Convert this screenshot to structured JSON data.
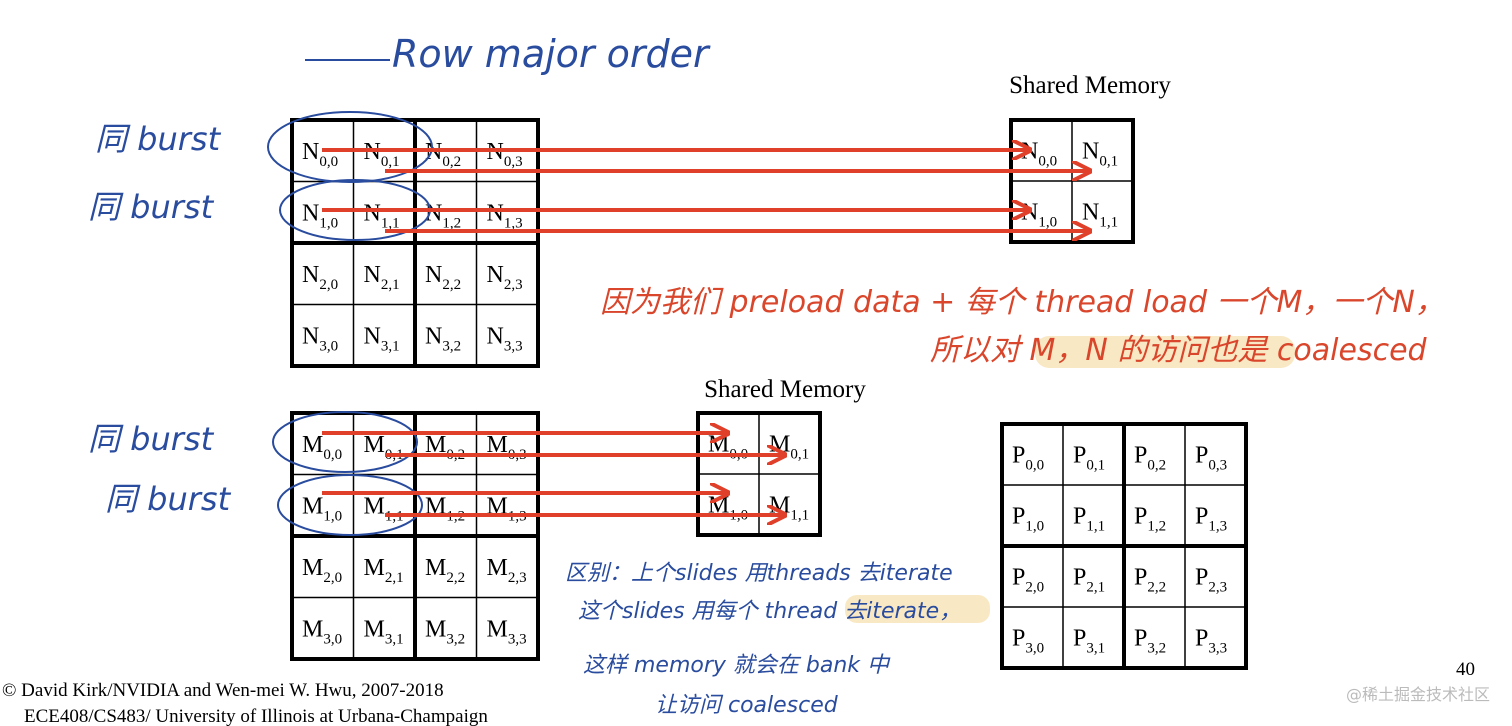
{
  "annotations": {
    "row_major": "Row major order",
    "burst_labels": [
      "同 burst",
      "同 burst",
      "同 burst",
      "同 burst"
    ],
    "note_top": [
      "因为我们 preload data + 每个 thread load 一个M，一个N，",
      "所以对 M，N 的访问也是 coalesced"
    ],
    "note_bottom": [
      "区别：上个slides 用threads 去iterate",
      "这个slides 用每个 thread 去iterate，",
      "这样 memory 就会在 bank 中",
      "让访问 coalesced"
    ]
  },
  "matrix_n": {
    "cells": [
      [
        {
          "letter": "N",
          "sub": "0,0"
        },
        {
          "letter": "N",
          "sub": "0,1"
        },
        {
          "letter": "N",
          "sub": "0,2"
        },
        {
          "letter": "N",
          "sub": "0,3"
        }
      ],
      [
        {
          "letter": "N",
          "sub": "1,0"
        },
        {
          "letter": "N",
          "sub": "1,1"
        },
        {
          "letter": "N",
          "sub": "1,2"
        },
        {
          "letter": "N",
          "sub": "1,3"
        }
      ],
      [
        {
          "letter": "N",
          "sub": "2,0"
        },
        {
          "letter": "N",
          "sub": "2,1"
        },
        {
          "letter": "N",
          "sub": "2,2"
        },
        {
          "letter": "N",
          "sub": "2,3"
        }
      ],
      [
        {
          "letter": "N",
          "sub": "3,0"
        },
        {
          "letter": "N",
          "sub": "3,1"
        },
        {
          "letter": "N",
          "sub": "3,2"
        },
        {
          "letter": "N",
          "sub": "3,3"
        }
      ]
    ]
  },
  "shared_n": {
    "title": "Shared Memory",
    "cells": [
      [
        {
          "letter": "N",
          "sub": "0,0"
        },
        {
          "letter": "N",
          "sub": "0,1"
        }
      ],
      [
        {
          "letter": "N",
          "sub": "1,0"
        },
        {
          "letter": "N",
          "sub": "1,1"
        }
      ]
    ]
  },
  "matrix_m": {
    "cells": [
      [
        {
          "letter": "M",
          "sub": "0,0"
        },
        {
          "letter": "M",
          "sub": "0,1"
        },
        {
          "letter": "M",
          "sub": "0,2"
        },
        {
          "letter": "M",
          "sub": "0,3"
        }
      ],
      [
        {
          "letter": "M",
          "sub": "1,0"
        },
        {
          "letter": "M",
          "sub": "1,1"
        },
        {
          "letter": "M",
          "sub": "1,2"
        },
        {
          "letter": "M",
          "sub": "1,3"
        }
      ],
      [
        {
          "letter": "M",
          "sub": "2,0"
        },
        {
          "letter": "M",
          "sub": "2,1"
        },
        {
          "letter": "M",
          "sub": "2,2"
        },
        {
          "letter": "M",
          "sub": "2,3"
        }
      ],
      [
        {
          "letter": "M",
          "sub": "3,0"
        },
        {
          "letter": "M",
          "sub": "3,1"
        },
        {
          "letter": "M",
          "sub": "3,2"
        },
        {
          "letter": "M",
          "sub": "3,3"
        }
      ]
    ]
  },
  "shared_m": {
    "title": "Shared Memory",
    "cells": [
      [
        {
          "letter": "M",
          "sub": "0,0"
        },
        {
          "letter": "M",
          "sub": "0,1"
        }
      ],
      [
        {
          "letter": "M",
          "sub": "1,0"
        },
        {
          "letter": "M",
          "sub": "1,1"
        }
      ]
    ]
  },
  "matrix_p": {
    "cells": [
      [
        {
          "letter": "P",
          "sub": "0,0"
        },
        {
          "letter": "P",
          "sub": "0,1"
        },
        {
          "letter": "P",
          "sub": "0,2"
        },
        {
          "letter": "P",
          "sub": "0,3"
        }
      ],
      [
        {
          "letter": "P",
          "sub": "1,0"
        },
        {
          "letter": "P",
          "sub": "1,1"
        },
        {
          "letter": "P",
          "sub": "1,2"
        },
        {
          "letter": "P",
          "sub": "1,3"
        }
      ],
      [
        {
          "letter": "P",
          "sub": "2,0"
        },
        {
          "letter": "P",
          "sub": "2,1"
        },
        {
          "letter": "P",
          "sub": "2,2"
        },
        {
          "letter": "P",
          "sub": "2,3"
        }
      ],
      [
        {
          "letter": "P",
          "sub": "3,0"
        },
        {
          "letter": "P",
          "sub": "3,1"
        },
        {
          "letter": "P",
          "sub": "3,2"
        },
        {
          "letter": "P",
          "sub": "3,3"
        }
      ]
    ]
  },
  "footer": {
    "copyright": "© David Kirk/NVIDIA and Wen-mei W. Hwu, 2007-2018",
    "course": "ECE408/CS483/ University of Illinois at Urbana-Champaign",
    "page": "40"
  },
  "watermark": "@稀土掘金技术社区"
}
